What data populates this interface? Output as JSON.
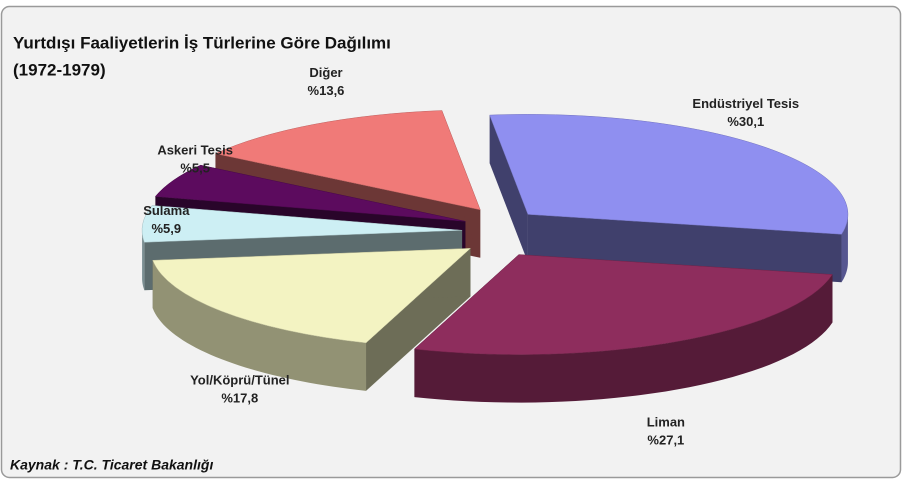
{
  "chart_data": {
    "type": "pie3d",
    "title": "Yurtdışı Faaliyetlerin İş Türlerine Göre Dağılımı",
    "subtitle": "(1972-1979)",
    "source": "Kaynak : T.C. Ticaret Bakanlığı",
    "categories": [
      "Endüstriyel Tesis",
      "Liman",
      "Yol/Köprü/Tünel",
      "Sulama",
      "Askeri Tesis",
      "Diğer"
    ],
    "values": [
      30.1,
      27.1,
      17.8,
      5.9,
      5.5,
      13.6
    ],
    "value_labels": [
      "%30,1",
      "%27,1",
      "%17,8",
      "%5,9",
      "%5,5",
      "%13,6"
    ],
    "colors": [
      "#8f8ff0",
      "#8e2d5d",
      "#f3f3c2",
      "#cdeff4",
      "#5c0b5e",
      "#f07a78"
    ]
  }
}
